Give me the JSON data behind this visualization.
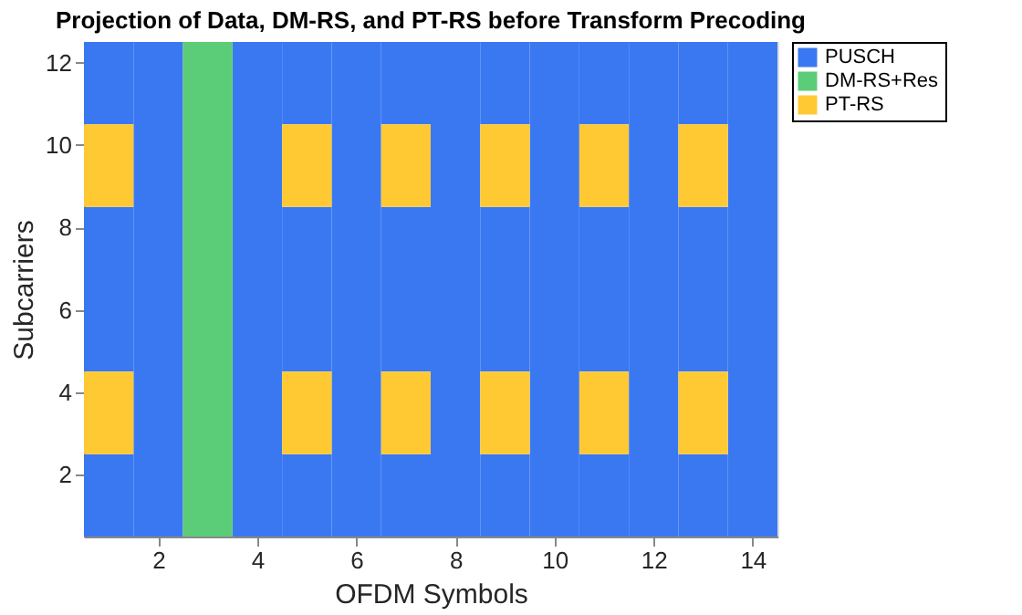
{
  "chart_data": {
    "type": "bar",
    "title": "Projection of Data, DM-RS, and PT-RS before Transform Precoding",
    "xlabel": "OFDM Symbols",
    "ylabel": "Subcarriers",
    "xlim": [
      0.5,
      14.5
    ],
    "xticks": [
      2,
      4,
      6,
      8,
      10,
      12,
      14
    ],
    "ylim": [
      0.5,
      12.5
    ],
    "yticks": [
      2,
      4,
      6,
      8,
      10,
      12
    ],
    "legend": "right",
    "series": [
      {
        "name": "PUSCH",
        "color": "#3a78f2",
        "x": [
          1,
          5,
          7,
          9,
          11,
          13
        ],
        "base": [
          0.5,
          0.5,
          0.5,
          0.5,
          0.5,
          0.5
        ],
        "values": [
          2,
          2,
          2,
          2,
          2,
          2
        ]
      },
      {
        "color": "#3a78f2",
        "x": [
          1,
          5,
          7,
          9,
          11,
          13
        ],
        "base": [
          4.5,
          4.5,
          4.5,
          4.5,
          4.5,
          4.5
        ],
        "values": [
          4,
          4,
          4,
          4,
          4,
          4
        ]
      },
      {
        "color": "#3a78f2",
        "x": [
          1,
          5,
          7,
          9,
          11,
          13
        ],
        "base": [
          10.5,
          10.5,
          10.5,
          10.5,
          10.5,
          10.5
        ],
        "values": [
          2,
          2,
          2,
          2,
          2,
          2
        ]
      },
      {
        "color": "#3a78f2",
        "x": [
          2
        ],
        "base": [
          0.5
        ],
        "values": [
          12
        ]
      },
      {
        "color": "#3a78f2",
        "x": [
          4
        ],
        "base": [
          0.5
        ],
        "values": [
          12
        ]
      },
      {
        "color": "#3a78f2",
        "x": [
          6,
          8,
          10,
          12,
          14
        ],
        "base": [
          0.5,
          0.5,
          0.5,
          0.5,
          0.5
        ],
        "values": [
          12,
          12,
          12,
          12,
          12
        ]
      },
      {
        "name": "DM-RS+Res",
        "color": "#5bcc77",
        "x": [
          3
        ],
        "base": [
          0.5
        ],
        "values": [
          12
        ]
      },
      {
        "name": "PT-RS",
        "color": "#ffc933",
        "x": [
          1,
          5,
          7,
          9,
          11,
          13
        ],
        "base": [
          2.5,
          2.5,
          2.5,
          2.5,
          2.5,
          2.5
        ],
        "values": [
          2,
          2,
          2,
          2,
          2,
          2
        ]
      },
      {
        "color": "#ffc933",
        "x": [
          1,
          5,
          7,
          9,
          11,
          13
        ],
        "base": [
          8.5,
          8.5,
          8.5,
          8.5,
          8.5,
          8.5
        ],
        "values": [
          2,
          2,
          2,
          2,
          2,
          2
        ]
      }
    ]
  }
}
